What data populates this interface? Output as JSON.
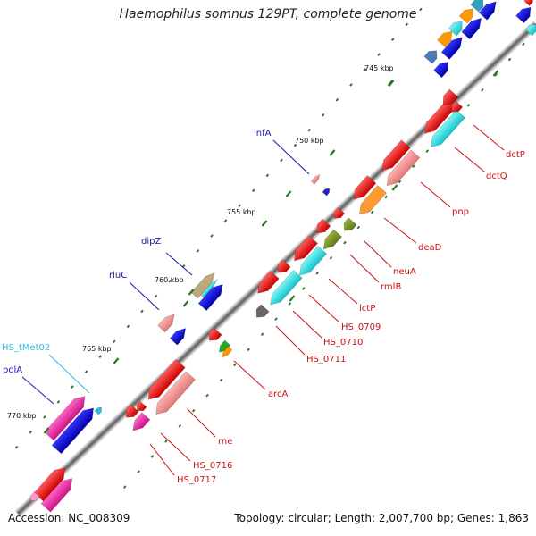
{
  "title": "Haemophilus somnus 129PT, complete genome",
  "footer": {
    "accession": "Accession: NC_008309",
    "summary": "Topology: circular; Length: 2,007,700 bp; Genes: 1,863"
  },
  "colors": {
    "forward_label": "#1a1aa8",
    "reverse_label": "#cc1111",
    "trna_label": "#33bbe0",
    "backbone": "#8a8a8a",
    "tick": "#2a7a2a"
  },
  "scale": {
    "ticks": [
      {
        "label": "745 kbp"
      },
      {
        "label": "750 kbp"
      },
      {
        "label": "755 kbp"
      },
      {
        "label": "760 kbp"
      },
      {
        "label": "765 kbp"
      },
      {
        "label": "770 kbp"
      }
    ]
  },
  "labels": {
    "forward": [
      "infA",
      "dipZ",
      "rluC",
      "polA"
    ],
    "trna": [
      "HS_tMet02"
    ],
    "reverse": [
      "dctP",
      "dctQ",
      "pnp",
      "deaD",
      "neuA",
      "rmlB",
      "lctP",
      "HS_0709",
      "HS_0710",
      "HS_0711",
      "arcA",
      "rne",
      "HS_0716",
      "HS_0717"
    ]
  }
}
